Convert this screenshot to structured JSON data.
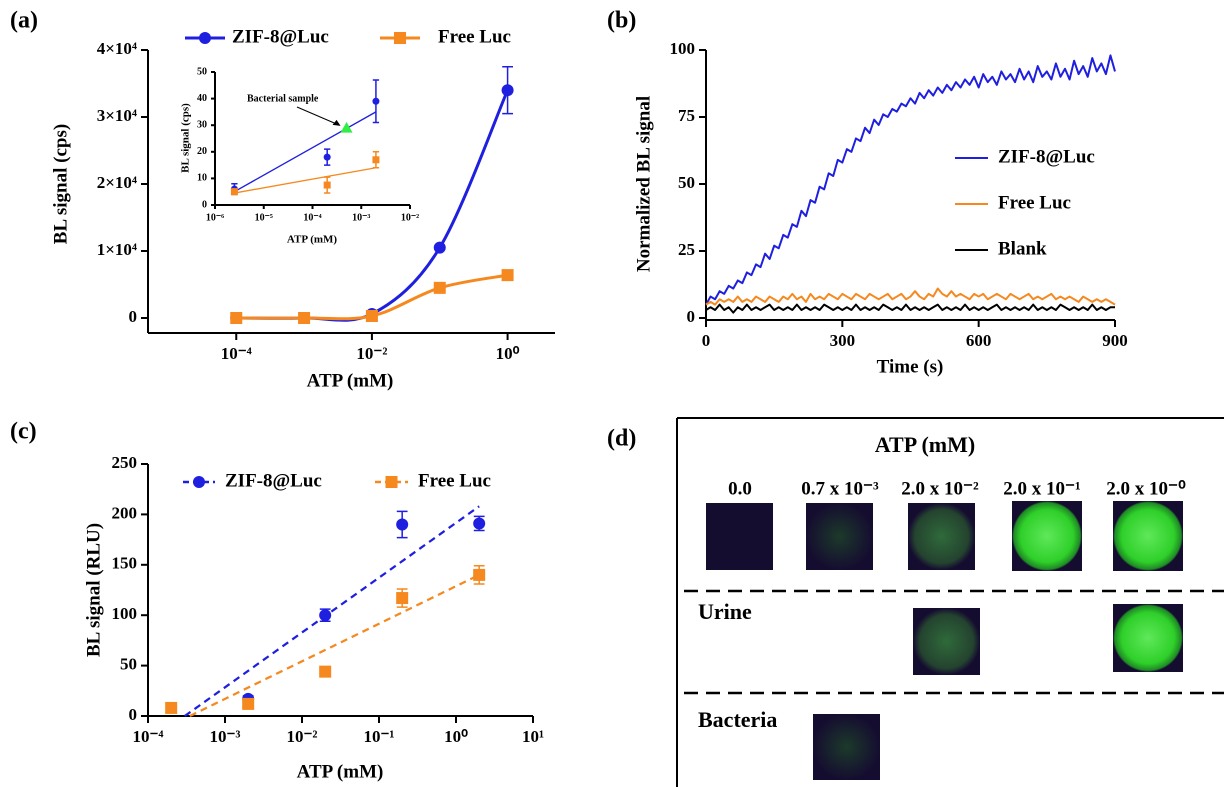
{
  "chart_data": [
    {
      "type": "line",
      "panel_label": "(a)",
      "smooth": true,
      "markers": true,
      "xscale": "log",
      "x": [
        0.0001,
        0.001,
        0.01,
        0.1,
        1
      ],
      "xlim": [
        5e-06,
        5
      ],
      "xticks": [
        {
          "value": 0.0001,
          "label": "10⁻⁴"
        },
        {
          "value": 0.01,
          "label": "10⁻²"
        },
        {
          "value": 1,
          "label": "10⁰"
        }
      ],
      "ylim": [
        0,
        40000
      ],
      "yticks": [
        0,
        {
          "value": 10000,
          "label": "1×10⁴"
        },
        {
          "value": 20000,
          "label": "2×10⁴"
        },
        {
          "value": 30000,
          "label": "3×10⁴"
        },
        {
          "value": 40000,
          "label": "4×10⁴"
        }
      ],
      "x_label": "ATP (mM)",
      "y_label": "BL signal (cps)",
      "legend": "top",
      "series": [
        {
          "name": "ZIF-8@Luc",
          "color": "#1f1fe0",
          "marker": "circle",
          "values": [
            0,
            0,
            600,
            10500,
            34000
          ],
          "errors": [
            null,
            null,
            null,
            null,
            3500
          ]
        },
        {
          "name": "Free Luc",
          "color": "#f5891f",
          "marker": "square",
          "values": [
            0,
            0,
            300,
            4500,
            6400
          ]
        }
      ]
    },
    {
      "type": "scatter",
      "xscale": "log",
      "xlim": [
        1e-06,
        0.01
      ],
      "xticks": [
        {
          "value": 1e-06,
          "label": "10⁻⁶"
        },
        {
          "value": 1e-05,
          "label": "10⁻⁵"
        },
        {
          "value": 0.0001,
          "label": "10⁻⁴"
        },
        {
          "value": 0.001,
          "label": "10⁻³"
        },
        {
          "value": 0.01,
          "label": "10⁻²"
        }
      ],
      "ylim": [
        0,
        50
      ],
      "yticks": [
        0,
        10,
        20,
        30,
        40,
        50
      ],
      "x_label": "ATP (mM)",
      "y_label": "BL signal (cps)",
      "series": [
        {
          "color": "#1f1fe0",
          "marker": "circle",
          "x": [
            2.5e-06,
            0.0002,
            0.002
          ],
          "values": [
            6,
            18,
            39
          ],
          "errors": [
            2,
            3,
            8
          ],
          "fit": {
            "x": [
              2.5e-06,
              0.002
            ],
            "y": [
              5,
              35
            ]
          }
        },
        {
          "color": "#f5891f",
          "marker": "square",
          "x": [
            2.5e-06,
            0.0002,
            0.002
          ],
          "values": [
            5,
            7.5,
            17
          ],
          "errors": [
            1,
            3,
            3
          ],
          "fit": {
            "x": [
              2.5e-06,
              0.002
            ],
            "y": [
              4.5,
              14
            ]
          }
        }
      ],
      "annotation": {
        "text": "Bacterial sample",
        "x": 0.0005,
        "y": 29,
        "color": "#33ee44"
      }
    },
    {
      "type": "line",
      "panel_label": "(b)",
      "x": [
        0,
        10,
        20,
        30,
        40,
        50,
        60,
        70,
        80,
        90,
        100,
        110,
        120,
        130,
        140,
        150,
        160,
        170,
        180,
        190,
        200,
        210,
        220,
        230,
        240,
        250,
        260,
        270,
        280,
        290,
        300,
        310,
        320,
        330,
        340,
        350,
        360,
        370,
        380,
        390,
        400,
        410,
        420,
        430,
        440,
        450,
        460,
        470,
        480,
        490,
        500,
        510,
        520,
        530,
        540,
        550,
        560,
        570,
        580,
        590,
        600,
        610,
        620,
        630,
        640,
        650,
        660,
        670,
        680,
        690,
        700,
        710,
        720,
        730,
        740,
        750,
        760,
        770,
        780,
        790,
        800,
        810,
        820,
        830,
        840,
        850,
        860,
        870,
        880,
        890,
        900
      ],
      "xlim": [
        0,
        900
      ],
      "xticks": [
        0,
        300,
        600,
        900
      ],
      "ylim": [
        0,
        100
      ],
      "yticks": [
        0,
        25,
        50,
        75,
        100
      ],
      "x_label": "Time (s)",
      "y_label": "Normalized BL signal",
      "legend": "right",
      "series": [
        {
          "name": "ZIF-8@Luc",
          "color": "#1f1fe0",
          "values": [
            5,
            8,
            7,
            10,
            9,
            12,
            11,
            14,
            13,
            17,
            16,
            20,
            19,
            24,
            22,
            27,
            26,
            31,
            30,
            35,
            34,
            40,
            38,
            44,
            43,
            49,
            48,
            54,
            53,
            59,
            58,
            63,
            62,
            67,
            66,
            71,
            69,
            74,
            72,
            76,
            75,
            78,
            77,
            80,
            79,
            82,
            80,
            84,
            82,
            85,
            83,
            86,
            84,
            87,
            85,
            88,
            86,
            89,
            87,
            90,
            86,
            91,
            88,
            90,
            87,
            92,
            89,
            91,
            88,
            93,
            89,
            92,
            88,
            94,
            90,
            92,
            89,
            95,
            90,
            93,
            89,
            96,
            91,
            94,
            90,
            97,
            92,
            95,
            91,
            98,
            92
          ]
        },
        {
          "name": "Free Luc",
          "color": "#f5891f",
          "values": [
            5,
            6,
            5,
            7,
            6,
            7,
            6,
            8,
            6,
            7,
            6,
            8,
            7,
            6,
            8,
            7,
            6,
            8,
            7,
            9,
            7,
            8,
            6,
            9,
            7,
            8,
            7,
            9,
            8,
            7,
            9,
            8,
            7,
            9,
            8,
            7,
            9,
            8,
            7,
            8,
            9,
            7,
            8,
            9,
            7,
            8,
            10,
            8,
            7,
            9,
            8,
            11,
            9,
            8,
            10,
            8,
            9,
            8,
            7,
            9,
            8,
            9,
            7,
            8,
            9,
            8,
            7,
            9,
            8,
            7,
            8,
            9,
            7,
            8,
            7,
            8,
            9,
            7,
            8,
            7,
            8,
            7,
            6,
            8,
            7,
            6,
            7,
            6,
            7,
            6,
            5
          ]
        },
        {
          "name": "Blank",
          "color": "#000000",
          "values": [
            3,
            4,
            3,
            5,
            3,
            4,
            2,
            4,
            3,
            5,
            3,
            4,
            3,
            4,
            5,
            3,
            4,
            3,
            4,
            3,
            5,
            3,
            4,
            3,
            4,
            3,
            5,
            4,
            3,
            4,
            3,
            4,
            3,
            5,
            3,
            4,
            3,
            4,
            3,
            5,
            4,
            3,
            4,
            3,
            5,
            3,
            4,
            3,
            4,
            3,
            4,
            5,
            3,
            4,
            3,
            4,
            3,
            5,
            3,
            4,
            3,
            4,
            3,
            4,
            5,
            3,
            4,
            3,
            4,
            3,
            4,
            3,
            5,
            3,
            4,
            3,
            4,
            3,
            5,
            4,
            3,
            4,
            3,
            4,
            3,
            5,
            3,
            4,
            3,
            4,
            4
          ]
        }
      ]
    },
    {
      "type": "scatter",
      "panel_label": "(c)",
      "xscale": "log",
      "fit_dash": true,
      "xlim": [
        0.0001,
        10
      ],
      "xticks": [
        {
          "value": 0.0001,
          "label": "10⁻⁴"
        },
        {
          "value": 0.001,
          "label": "10⁻³"
        },
        {
          "value": 0.01,
          "label": "10⁻²"
        },
        {
          "value": 0.1,
          "label": "10⁻¹"
        },
        {
          "value": 1,
          "label": "10⁰"
        },
        {
          "value": 10,
          "label": "10¹"
        }
      ],
      "ylim": [
        0,
        250
      ],
      "yticks": [
        0,
        50,
        100,
        150,
        200,
        250
      ],
      "x_label": "ATP (mM)",
      "y_label": "BL signal (RLU)",
      "legend": "top",
      "series": [
        {
          "name": "ZIF-8@Luc",
          "color": "#1f1fe0",
          "marker": "circle",
          "x": [
            0.002,
            0.02,
            0.2,
            2
          ],
          "values": [
            17,
            100,
            190,
            191
          ],
          "errors": [
            3,
            6,
            13,
            7
          ],
          "fit": {
            "x": [
              0.0003,
              2
            ],
            "y": [
              0,
              208
            ]
          }
        },
        {
          "name": "Free Luc",
          "color": "#f5891f",
          "marker": "square",
          "x": [
            0.0002,
            0.002,
            0.02,
            0.2,
            2
          ],
          "values": [
            8,
            12,
            44,
            117,
            140
          ],
          "errors": [
            null,
            4,
            3,
            9,
            9
          ],
          "fit": {
            "x": [
              0.00035,
              2
            ],
            "y": [
              0,
              140
            ]
          }
        }
      ]
    }
  ],
  "panel_d": {
    "label": "(d)",
    "title": "ATP (mM)",
    "columns": [
      "0.0",
      "0.7 x 10⁻³",
      "2.0 x 10⁻²",
      "2.0 x 10⁻¹",
      "2.0 x 10⁻⁰"
    ],
    "rows": [
      "Urine",
      "Bacteria"
    ]
  }
}
